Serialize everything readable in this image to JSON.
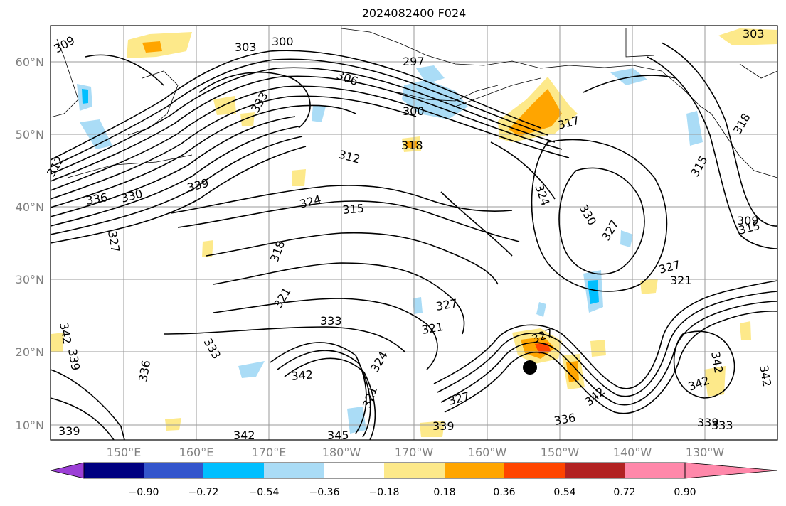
{
  "title": "2024082400 F024",
  "lat_labels": [
    "60°N",
    "50°N",
    "40°N",
    "30°N",
    "20°N",
    "10°N"
  ],
  "lon_labels": [
    "150°E",
    "160°E",
    "170°E",
    "180°W",
    "170°W",
    "160°W",
    "150°W",
    "140°W",
    "130°W"
  ],
  "colorbar": {
    "ticks": [
      "−0.90",
      "−0.72",
      "−0.54",
      "−0.36",
      "−0.18",
      "0.18",
      "0.36",
      "0.54",
      "0.72",
      "0.90"
    ],
    "colors": [
      "#9c3fd6",
      "#000080",
      "#3355cc",
      "#00bfff",
      "#aadcf6",
      "#ffffff",
      "#fde98a",
      "#ffa500",
      "#ff4500",
      "#b22222",
      "#ff88aa"
    ]
  },
  "contour_labels": [
    "309",
    "303",
    "300",
    "297",
    "306",
    "303",
    "333",
    "300",
    "318",
    "312",
    "317",
    "318",
    "312",
    "315",
    "336",
    "339",
    "330",
    "324",
    "315",
    "327",
    "327",
    "324",
    "330",
    "327",
    "321",
    "315",
    "309",
    "318",
    "321",
    "327",
    "333",
    "327",
    "321",
    "324",
    "342",
    "339",
    "336",
    "333",
    "342",
    "327",
    "336",
    "339",
    "342",
    "345",
    "342",
    "339",
    "342",
    "342",
    "333",
    "321",
    "339",
    "342"
  ]
}
